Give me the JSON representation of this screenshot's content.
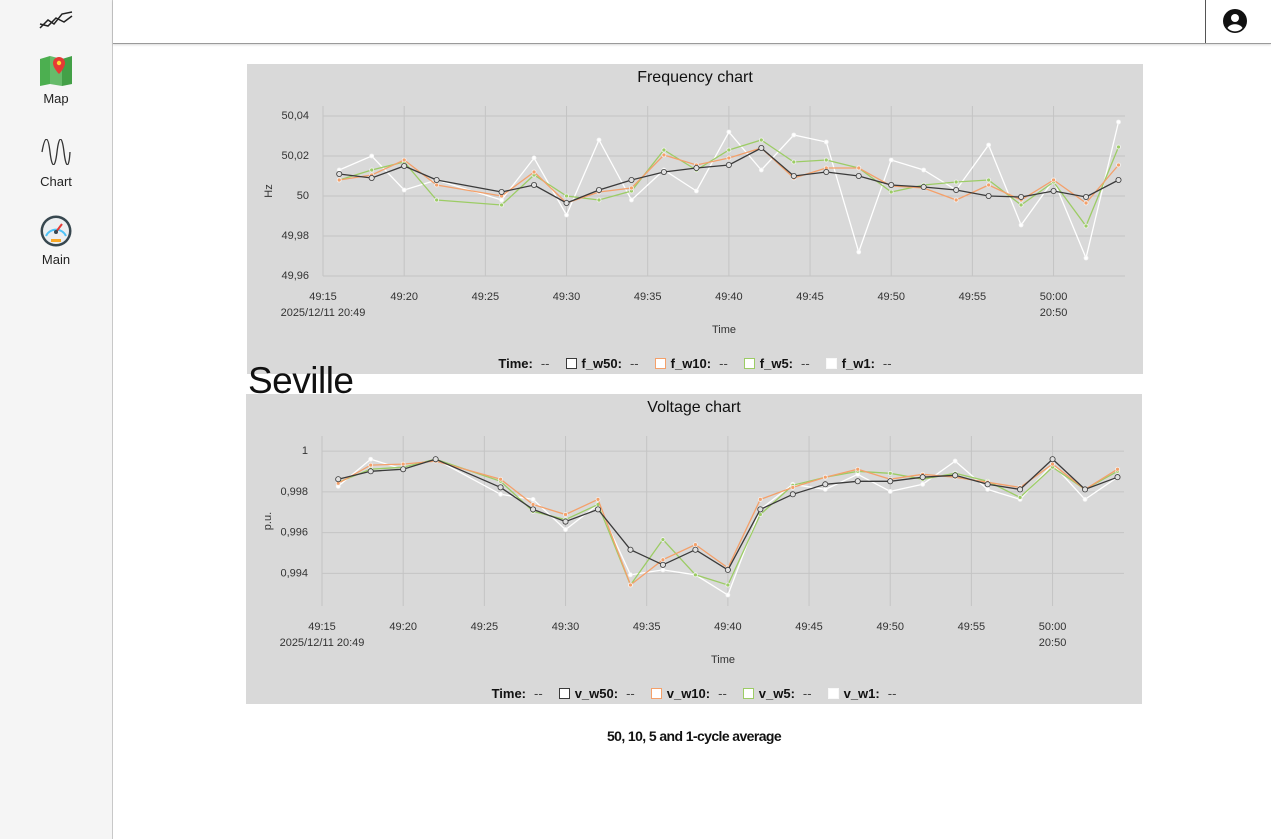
{
  "nav": [
    "Map",
    "Chart",
    "Main"
  ],
  "location": "Seville",
  "caption": "50, 10, 5 and 1-cycle average",
  "legend": {
    "time_label": "Time:",
    "empty_value": "--"
  },
  "chart_data": [
    {
      "type": "line",
      "title": "Frequency chart",
      "x_label": "Time",
      "y_label": "Hz",
      "grid": true,
      "x": [
        16,
        18,
        20,
        22,
        26,
        28,
        30,
        32,
        34,
        36,
        38,
        40,
        42,
        44,
        46,
        48,
        50,
        52,
        54,
        56,
        58,
        60,
        62,
        64
      ],
      "xlim": [
        15,
        64.4
      ],
      "xticks": [
        {
          "value": 15,
          "label": "49:15",
          "sublabel": "2025/12/11 20:49"
        },
        {
          "value": 20,
          "label": "49:20"
        },
        {
          "value": 25,
          "label": "49:25"
        },
        {
          "value": 30,
          "label": "49:30"
        },
        {
          "value": 35,
          "label": "49:35"
        },
        {
          "value": 40,
          "label": "49:40"
        },
        {
          "value": 45,
          "label": "49:45"
        },
        {
          "value": 50,
          "label": "49:50"
        },
        {
          "value": 55,
          "label": "49:55"
        },
        {
          "value": 60,
          "label": "50:00",
          "sublabel": "20:50"
        }
      ],
      "ylim": [
        49.96,
        50.045
      ],
      "yticks": [
        {
          "value": 49.96,
          "label": "49,96"
        },
        {
          "value": 49.98,
          "label": "49,98"
        },
        50,
        {
          "value": 50.02,
          "label": "50,02"
        },
        {
          "value": 50.04,
          "label": "50,04"
        }
      ],
      "series": [
        {
          "name": "f_w50:",
          "color": "#3a3a3a",
          "values": [
            50.011,
            50.009,
            50.015,
            50.008,
            50.002,
            50.0055,
            49.9965,
            50.003,
            50.008,
            50.012,
            50.014,
            50.0155,
            50.024,
            50.01,
            50.012,
            50.01,
            50.0055,
            50.0045,
            50.003,
            50.0,
            49.9995,
            50.0025,
            49.9995,
            50.008
          ]
        },
        {
          "name": "f_w10:",
          "color": "#f4a06a",
          "values": [
            50.008,
            50.0105,
            50.018,
            50.0055,
            50.0,
            50.012,
            49.9965,
            50.002,
            50.004,
            50.0205,
            50.0155,
            50.019,
            50.024,
            50.009,
            50.014,
            50.014,
            50.005,
            50.004,
            49.998,
            50.0055,
            49.998,
            50.008,
            49.9965,
            50.0155
          ]
        },
        {
          "name": "f_w5:",
          "color": "#9ccc65",
          "values": [
            50.008,
            50.013,
            50.017,
            49.998,
            49.9955,
            50.0105,
            50.0,
            49.998,
            50.0025,
            50.023,
            50.013,
            50.023,
            50.028,
            50.017,
            50.018,
            50.014,
            50.002,
            50.0055,
            50.007,
            50.008,
            49.9955,
            50.007,
            49.985,
            50.0245
          ]
        },
        {
          "name": "f_w1:",
          "color": "#ffffff",
          "values": [
            50.013,
            50.02,
            50.003,
            50.008,
            49.998,
            50.019,
            49.9905,
            50.028,
            49.998,
            50.013,
            50.0025,
            50.032,
            50.013,
            50.0305,
            50.027,
            49.972,
            50.018,
            50.013,
            50.003,
            50.0255,
            49.9855,
            50.008,
            49.969,
            50.037
          ]
        }
      ]
    },
    {
      "type": "line",
      "title": "Voltage chart",
      "x_label": "Time",
      "y_label": "p.u.",
      "grid": true,
      "x": [
        16,
        18,
        20,
        22,
        26,
        28,
        30,
        32,
        34,
        36,
        38,
        40,
        42,
        44,
        46,
        48,
        50,
        52,
        54,
        56,
        58,
        60,
        62,
        64
      ],
      "xlim": [
        15,
        64.4
      ],
      "xticks": [
        {
          "value": 15,
          "label": "49:15",
          "sublabel": "2025/12/11 20:49"
        },
        {
          "value": 20,
          "label": "49:20"
        },
        {
          "value": 25,
          "label": "49:25"
        },
        {
          "value": 30,
          "label": "49:30"
        },
        {
          "value": 35,
          "label": "49:35"
        },
        {
          "value": 40,
          "label": "49:40"
        },
        {
          "value": 45,
          "label": "49:45"
        },
        {
          "value": 50,
          "label": "49:50"
        },
        {
          "value": 55,
          "label": "49:55"
        },
        {
          "value": 60,
          "label": "50:00",
          "sublabel": "20:50"
        }
      ],
      "ylim": [
        0.9924,
        1.00074
      ],
      "yticks": [
        {
          "value": 0.994,
          "label": "0,994"
        },
        {
          "value": 0.996,
          "label": "0,996"
        },
        {
          "value": 0.998,
          "label": "0,998"
        },
        1
      ],
      "series": [
        {
          "name": "v_w50:",
          "color": "#3a3a3a",
          "values": [
            0.99862,
            0.99901,
            0.99911,
            0.9996,
            0.99822,
            0.99714,
            0.99654,
            0.99714,
            0.99516,
            0.99442,
            0.99516,
            0.99417,
            0.99714,
            0.99788,
            0.99837,
            0.99852,
            0.99852,
            0.99872,
            0.99881,
            0.99837,
            0.99812,
            0.9996,
            0.99812,
            0.99872
          ]
        },
        {
          "name": "v_w10:",
          "color": "#f4a06a",
          "values": [
            0.99842,
            0.99931,
            0.99936,
            0.99951,
            0.99862,
            0.99738,
            0.99689,
            0.99763,
            0.99343,
            0.99467,
            0.99541,
            0.99427,
            0.99763,
            0.99822,
            0.99872,
            0.99911,
            0.99862,
            0.99886,
            0.99872,
            0.99847,
            0.99822,
            0.99936,
            0.99812,
            0.99911
          ]
        },
        {
          "name": "v_w5:",
          "color": "#9ccc65",
          "values": [
            0.99847,
            0.99911,
            0.99921,
            0.9996,
            0.99852,
            0.99704,
            0.99664,
            0.99738,
            0.99343,
            0.99566,
            0.99393,
            0.99343,
            0.99689,
            0.99832,
            0.99872,
            0.99901,
            0.99891,
            0.99862,
            0.99891,
            0.99852,
            0.99773,
            0.99921,
            0.99812,
            0.99901
          ]
        },
        {
          "name": "v_w1:",
          "color": "#ffffff",
          "values": [
            0.99827,
            0.9996,
            0.99911,
            0.9996,
            0.99788,
            0.99763,
            0.99615,
            0.99738,
            0.99393,
            0.99417,
            0.99393,
            0.99294,
            0.99714,
            0.99837,
            0.99812,
            0.99886,
            0.99802,
            0.99837,
            0.99951,
            0.99812,
            0.99763,
            0.99936,
            0.99763,
            0.99872
          ]
        }
      ]
    }
  ]
}
